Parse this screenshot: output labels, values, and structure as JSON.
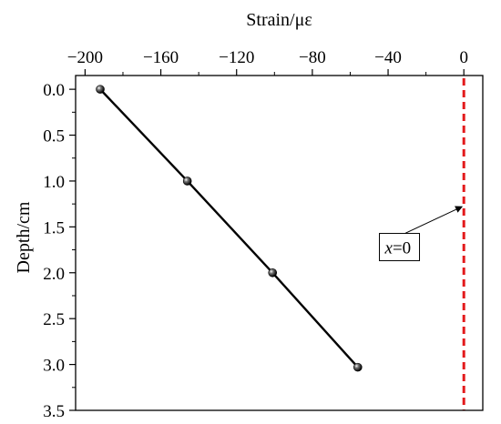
{
  "chart_data": {
    "type": "line",
    "title": "",
    "xlabel": "Strain/με",
    "ylabel": "Depth/cm",
    "xlim": [
      -205,
      10
    ],
    "ylim": [
      3.5,
      -0.15
    ],
    "x_axis_position": "top",
    "y_inverted": true,
    "x_ticks": [
      -200,
      -160,
      -120,
      -80,
      -40,
      0
    ],
    "x_tick_labels": [
      "−200",
      "−160",
      "−120",
      "−80",
      "−40",
      "0"
    ],
    "y_ticks": [
      0.0,
      0.5,
      1.0,
      1.5,
      2.0,
      2.5,
      3.0,
      3.5
    ],
    "y_tick_labels": [
      "0.0",
      "0.5",
      "1.0",
      "1.5",
      "2.0",
      "2.5",
      "3.0",
      "3.5"
    ],
    "grid": false,
    "series": [
      {
        "x": [
          -192,
          -146,
          -101,
          -56
        ],
        "y": [
          0.0,
          1.0,
          2.0,
          3.03
        ],
        "color": "#000000",
        "marker": "sphere"
      }
    ],
    "reference_line": {
      "x": 0,
      "color": "#e31a1c",
      "style": "dashed"
    },
    "annotation": {
      "italic": "x",
      "rest": "=0",
      "box_at": [
        -34,
        1.72
      ],
      "arrow_to": [
        -1,
        1.28
      ]
    }
  }
}
